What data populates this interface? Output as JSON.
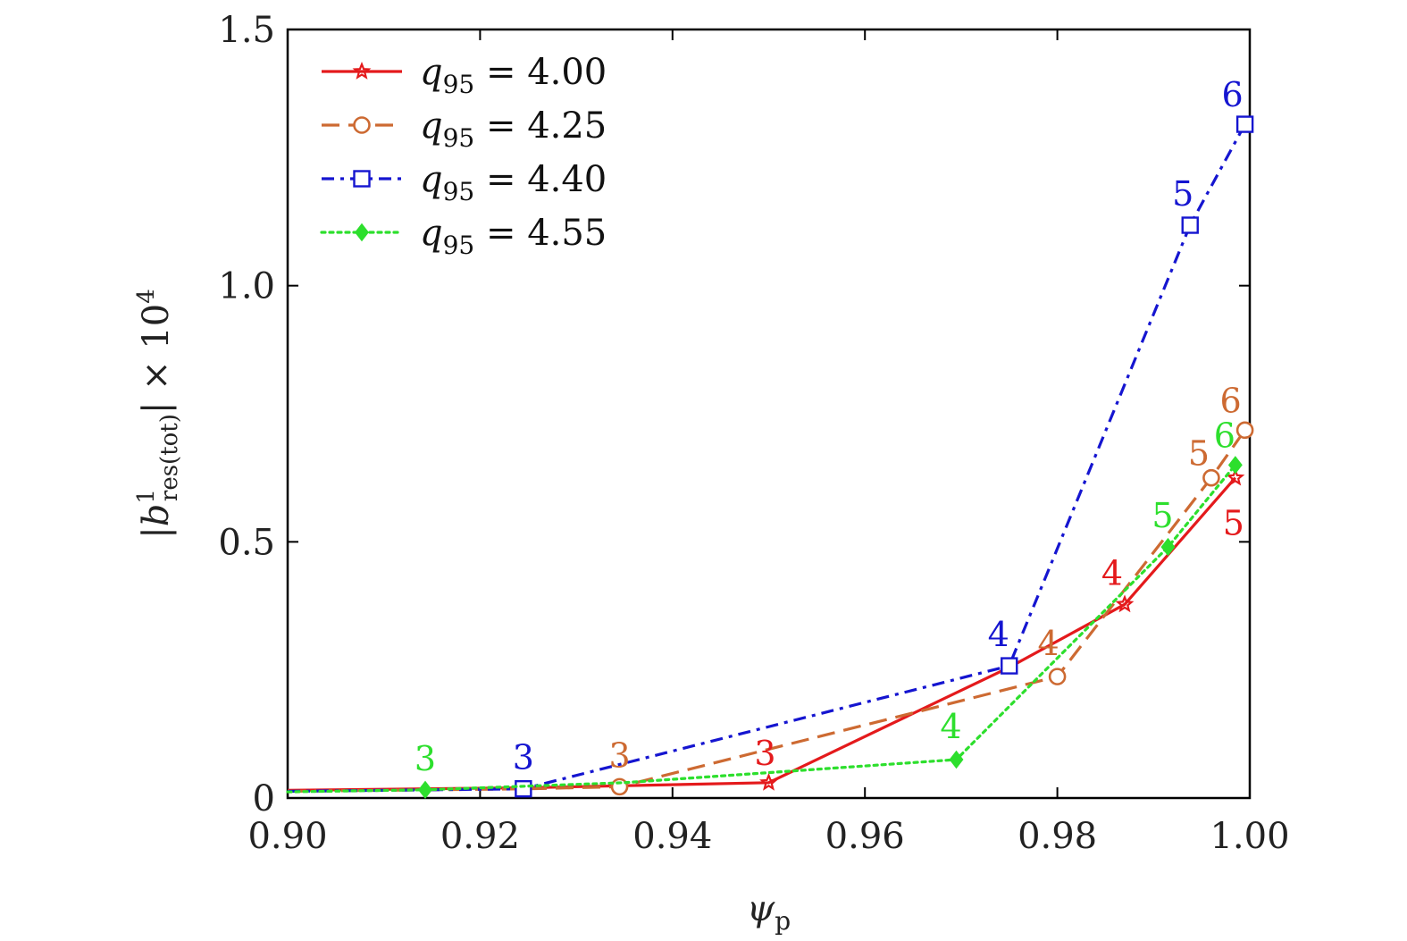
{
  "chart_data": {
    "type": "line",
    "xlabel": "ψp",
    "xlabel_parts": {
      "main": "ψ",
      "sub": "p"
    },
    "ylabel": "|b¹res(tot)| × 10⁴",
    "ylabel_parts": {
      "main": "|b",
      "sup": "1",
      "sub": "res(tot)",
      "tail": "| × 10",
      "exp": "4"
    },
    "xlim": [
      0.9,
      1.0
    ],
    "ylim": [
      0,
      1.5
    ],
    "xticks": [
      0.9,
      0.92,
      0.94,
      0.96,
      0.98,
      1.0
    ],
    "xtick_labels": [
      "0.90",
      "0.92",
      "0.94",
      "0.96",
      "0.98",
      "1.00"
    ],
    "yticks": [
      0,
      0.5,
      1.0,
      1.5
    ],
    "ytick_labels": [
      "0",
      "0.5",
      "1.0",
      "1.5"
    ],
    "legend_position": "top-left",
    "series": [
      {
        "name": "q95 = 4.00",
        "legend": {
          "q": "q",
          "sub": "95",
          "rest": " = 4.00"
        },
        "color": "#e41a1c",
        "dash": "solid",
        "marker": "star",
        "x": [
          0.9,
          0.925,
          0.95,
          0.975,
          0.987,
          0.9985
        ],
        "y": [
          0.015,
          0.02,
          0.03,
          0.255,
          0.378,
          0.625
        ],
        "point_labels": [
          null,
          null,
          "3",
          null,
          "4",
          "5"
        ]
      },
      {
        "name": "q95 = 4.25",
        "legend": {
          "q": "q",
          "sub": "95",
          "rest": " = 4.25"
        },
        "color": "#cd6a32",
        "dash": "dashed",
        "marker": "circle",
        "x": [
          0.9,
          0.925,
          0.9345,
          0.98,
          0.996,
          0.9995
        ],
        "y": [
          0.013,
          0.018,
          0.022,
          0.237,
          0.625,
          0.718
        ],
        "point_labels": [
          null,
          null,
          "3",
          "4",
          "5",
          "6"
        ]
      },
      {
        "name": "q95 = 4.40",
        "legend": {
          "q": "q",
          "sub": "95",
          "rest": " = 4.40"
        },
        "color": "#1515d0",
        "dash": "dashdot",
        "marker": "square",
        "x": [
          0.9,
          0.9245,
          0.975,
          0.9938,
          0.9995
        ],
        "y": [
          0.013,
          0.018,
          0.258,
          1.118,
          1.315
        ],
        "point_labels": [
          null,
          "3",
          "4",
          "5",
          "6"
        ]
      },
      {
        "name": "q95 = 4.55",
        "legend": {
          "q": "q",
          "sub": "95",
          "rest": " = 4.55"
        },
        "color": "#2ddf2d",
        "dash": "dotted",
        "marker": "diamond",
        "x": [
          0.9,
          0.9143,
          0.935,
          0.9695,
          0.9915,
          0.9985
        ],
        "y": [
          0.012,
          0.016,
          0.03,
          0.075,
          0.49,
          0.65
        ],
        "point_labels": [
          null,
          "3",
          null,
          "4",
          "5",
          "6"
        ]
      }
    ]
  }
}
